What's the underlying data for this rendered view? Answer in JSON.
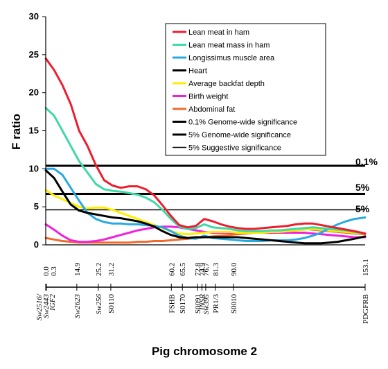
{
  "chart_data": {
    "type": "line",
    "xlabel": "Pig chromosome 2",
    "ylabel": "F ratio",
    "ylim": [
      0,
      30
    ],
    "xlim": [
      0,
      153.1
    ],
    "yticks": [
      0,
      5,
      10,
      15,
      20,
      25,
      30
    ],
    "legend_position": "top-right",
    "series": [
      {
        "name": "Lean meat in ham",
        "color": "#ee1d2e",
        "x": [
          0,
          4,
          8,
          12,
          16,
          20,
          24,
          28,
          32,
          36,
          40,
          44,
          48,
          52,
          56,
          60,
          64,
          68,
          72,
          76,
          80,
          84,
          88,
          92,
          96,
          100,
          104,
          108,
          112,
          116,
          120,
          124,
          128,
          132,
          136,
          140,
          144,
          148,
          153.1
        ],
        "y": [
          24.5,
          23,
          21,
          18.5,
          15,
          13,
          10.5,
          8.5,
          7.8,
          7.5,
          7.7,
          7.7,
          7.3,
          6.5,
          5.2,
          3.8,
          2.6,
          2.3,
          2.5,
          3.4,
          3.1,
          2.7,
          2.4,
          2.2,
          2.1,
          2.1,
          2.2,
          2.3,
          2.4,
          2.5,
          2.7,
          2.8,
          2.8,
          2.6,
          2.4,
          2.2,
          2,
          1.8,
          1.5
        ]
      },
      {
        "name": "Lean meat mass in ham",
        "color": "#3fd9a8",
        "x": [
          0,
          4,
          8,
          12,
          16,
          20,
          24,
          28,
          32,
          36,
          40,
          44,
          48,
          52,
          56,
          60,
          64,
          68,
          72,
          76,
          80,
          84,
          88,
          92,
          96,
          100,
          104,
          108,
          112,
          116,
          120,
          124,
          128,
          132,
          136,
          140,
          144,
          148,
          153.1
        ],
        "y": [
          18,
          17,
          15,
          13,
          11,
          9.5,
          8,
          7.3,
          7.1,
          7,
          6.8,
          6.6,
          6.2,
          5.6,
          4.6,
          3.4,
          2.4,
          2.1,
          2.2,
          2.7,
          2.3,
          2.2,
          2.1,
          1.9,
          1.8,
          1.8,
          1.8,
          1.9,
          1.9,
          2,
          2.1,
          2.2,
          2.3,
          2.2,
          2.1,
          2,
          1.9,
          1.7,
          1.5
        ]
      },
      {
        "name": "Longissimus muscle area",
        "color": "#29a9e1",
        "x": [
          0,
          4,
          8,
          12,
          16,
          20,
          24,
          28,
          32,
          36,
          40,
          44,
          48,
          52,
          56,
          60,
          64,
          68,
          72,
          76,
          80,
          84,
          88,
          92,
          96,
          100,
          104,
          108,
          112,
          116,
          120,
          124,
          128,
          132,
          136,
          140,
          144,
          148,
          153.1
        ],
        "y": [
          10,
          10,
          9.2,
          7.5,
          5.8,
          4.2,
          3.4,
          3,
          2.8,
          2.8,
          2.7,
          2.7,
          2.6,
          2.5,
          2.3,
          1.8,
          1.2,
          0.9,
          0.8,
          1.2,
          0.9,
          0.8,
          0.7,
          0.6,
          0.5,
          0.5,
          0.5,
          0.6,
          0.6,
          0.6,
          0.7,
          0.9,
          1.2,
          1.6,
          2.2,
          2.7,
          3.1,
          3.4,
          3.6
        ]
      },
      {
        "name": "Heart",
        "color": "#000000",
        "x": [
          0,
          4,
          8,
          12,
          16,
          20,
          24,
          28,
          32,
          36,
          40,
          44,
          48,
          52,
          56,
          60,
          64,
          68,
          72,
          76,
          80,
          84,
          88,
          92,
          96,
          100,
          104,
          108,
          112,
          116,
          120,
          124,
          128,
          132,
          136,
          140,
          144,
          148,
          153.1
        ],
        "y": [
          9.8,
          8.8,
          7,
          5.3,
          4.5,
          4.2,
          4,
          3.8,
          3.6,
          3.5,
          3.3,
          3.1,
          2.8,
          2.4,
          1.8,
          1.3,
          1,
          0.9,
          1,
          1,
          1,
          1,
          1,
          1,
          0.9,
          0.8,
          0.7,
          0.6,
          0.5,
          0.4,
          0.3,
          0.2,
          0.2,
          0.2,
          0.3,
          0.4,
          0.6,
          0.8,
          1.1
        ]
      },
      {
        "name": "Average backfat depth",
        "color": "#ffee00",
        "x": [
          0,
          4,
          8,
          12,
          16,
          20,
          24,
          28,
          32,
          36,
          40,
          44,
          48,
          52,
          56,
          60,
          64,
          68,
          72,
          76,
          80,
          84,
          88,
          92,
          96,
          100,
          104,
          108,
          112,
          116,
          120,
          124,
          128,
          132,
          136,
          140,
          144,
          148,
          153.1
        ],
        "y": [
          7.2,
          6.5,
          6,
          5.5,
          5,
          4.8,
          4.9,
          4.9,
          4.6,
          4.2,
          3.8,
          3.4,
          3,
          2.6,
          2.2,
          1.8,
          1.5,
          1.4,
          1.5,
          1.6,
          1.7,
          1.7,
          1.7,
          1.6,
          1.6,
          1.6,
          1.6,
          1.7,
          1.7,
          1.8,
          1.9,
          2,
          2.1,
          2,
          1.9,
          1.8,
          1.7,
          1.6,
          1.5
        ]
      },
      {
        "name": "Birth weight",
        "color": "#ee22dd",
        "x": [
          0,
          4,
          8,
          12,
          16,
          20,
          24,
          28,
          32,
          36,
          40,
          44,
          48,
          52,
          56,
          60,
          64,
          68,
          72,
          76,
          80,
          84,
          88,
          92,
          96,
          100,
          104,
          108,
          112,
          116,
          120,
          124,
          128,
          132,
          136,
          140,
          144,
          148,
          153.1
        ],
        "y": [
          2.7,
          2,
          1.2,
          0.6,
          0.4,
          0.4,
          0.5,
          0.7,
          1,
          1.3,
          1.6,
          1.9,
          2.1,
          2.3,
          2.4,
          2.4,
          2.3,
          2.1,
          1.9,
          1.7,
          1.6,
          1.6,
          1.6,
          1.6,
          1.6,
          1.6,
          1.6,
          1.6,
          1.6,
          1.6,
          1.6,
          1.6,
          1.5,
          1.4,
          1.3,
          1.2,
          1.1,
          1.0,
          1.0
        ]
      },
      {
        "name": "Abdominal fat",
        "color": "#f06a2a",
        "x": [
          0,
          4,
          8,
          12,
          16,
          20,
          24,
          28,
          32,
          36,
          40,
          44,
          48,
          52,
          56,
          60,
          64,
          68,
          72,
          76,
          80,
          84,
          88,
          92,
          96,
          100,
          104,
          108,
          112,
          116,
          120,
          124,
          128,
          132,
          136,
          140,
          144,
          148,
          153.1
        ],
        "y": [
          0.9,
          0.7,
          0.5,
          0.4,
          0.3,
          0.3,
          0.3,
          0.3,
          0.3,
          0.3,
          0.3,
          0.4,
          0.4,
          0.5,
          0.5,
          0.6,
          0.7,
          0.8,
          0.9,
          1,
          1.1,
          1.2,
          1.3,
          1.4,
          1.5,
          1.6,
          1.7,
          1.8,
          1.9,
          2,
          2.1,
          2.1,
          2,
          1.9,
          1.8,
          1.7,
          1.6,
          1.5,
          1.4
        ]
      }
    ],
    "thresholds": [
      {
        "name": "0.1%  Genome-wide significance",
        "value": 10.4,
        "label": "0.1%",
        "width": 3
      },
      {
        "name": "5%  Genome-wide significance",
        "value": 6.7,
        "label": "5%",
        "width": 3
      },
      {
        "name": "5%  Suggestive significance",
        "value": 4.6,
        "label": "5%",
        "width": 1.5
      }
    ],
    "map_positions": [
      "0.0",
      "0.3",
      "14.9",
      "25.2",
      "31.2",
      "60.2",
      "65.5",
      "72.8",
      "74.9",
      "76.7",
      "81.3",
      "90.0",
      "153.1"
    ],
    "map_position_values": [
      0.0,
      0.3,
      14.9,
      25.2,
      31.2,
      60.2,
      65.5,
      72.8,
      74.9,
      76.7,
      81.3,
      90.0,
      153.1
    ],
    "markers": [
      {
        "name": "Sw2516/",
        "pos": 0.0,
        "italic": true
      },
      {
        "name": "Sw2443",
        "pos": 0.3,
        "italic": true
      },
      {
        "name": "IGF2",
        "pos": 0.3,
        "italic": true
      },
      {
        "name": "Sw2623",
        "pos": 14.9,
        "italic": true
      },
      {
        "name": "Sw256",
        "pos": 25.2,
        "italic": true
      },
      {
        "name": "S0110",
        "pos": 31.2,
        "italic": false
      },
      {
        "name": "FSHB",
        "pos": 60.2,
        "italic": false
      },
      {
        "name": "S0170",
        "pos": 65.5,
        "italic": false
      },
      {
        "name": "S0091",
        "pos": 72.8,
        "italic": false
      },
      {
        "name": "INSR",
        "pos": 74.9,
        "italic": true
      },
      {
        "name": "Sw395",
        "pos": 76.7,
        "italic": true
      },
      {
        "name": "PR1/3",
        "pos": 81.3,
        "italic": false
      },
      {
        "name": "S0010",
        "pos": 90.0,
        "italic": false
      },
      {
        "name": "PDGFRB",
        "pos": 153.1,
        "italic": false
      }
    ]
  }
}
